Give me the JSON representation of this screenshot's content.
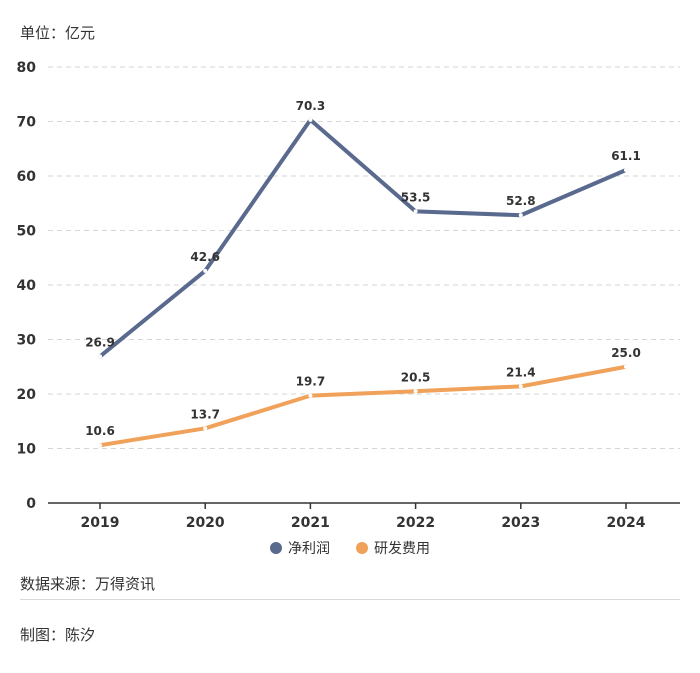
{
  "unit_label": "单位：亿元",
  "source_label": "数据来源：万得资讯",
  "author_label": "制图：陈汐",
  "colors": {
    "net_profit": "#5a6a8e",
    "rd_expense": "#f0a15a",
    "grid": "#d6d6d6",
    "axis": "#333333"
  },
  "chart_data": {
    "type": "line",
    "categories": [
      "2019",
      "2020",
      "2021",
      "2022",
      "2023",
      "2024"
    ],
    "series": [
      {
        "name": "净利润",
        "values": [
          26.9,
          42.6,
          70.3,
          53.5,
          52.8,
          61.1
        ],
        "labels": [
          "26.9",
          "42.6",
          "70.3",
          "53.5",
          "52.8",
          "61.1"
        ]
      },
      {
        "name": "研发费用",
        "values": [
          10.6,
          13.7,
          19.7,
          20.5,
          21.4,
          25.0
        ],
        "labels": [
          "10.6",
          "13.7",
          "19.7",
          "20.5",
          "21.4",
          "25.0"
        ]
      }
    ],
    "ylim": [
      0,
      80
    ],
    "yticks": [
      "0",
      "10",
      "20",
      "30",
      "40",
      "50",
      "60",
      "70",
      "80"
    ],
    "grid": true,
    "legend_position": "bottom-center",
    "ylabel": "单位：亿元"
  }
}
